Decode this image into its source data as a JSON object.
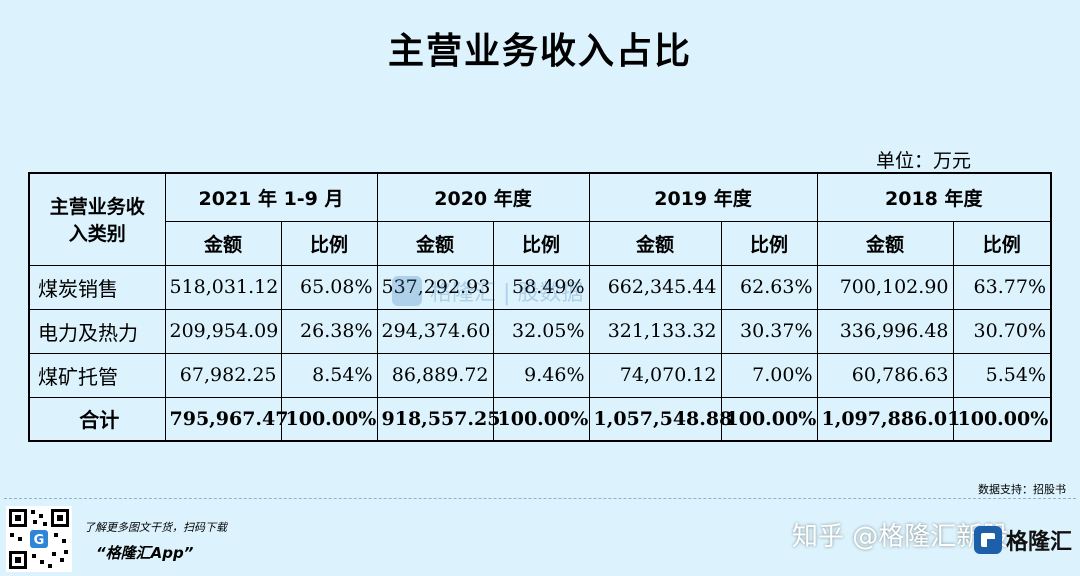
{
  "title": "主营业务收入占比",
  "unit": "单位：万元",
  "table": {
    "corner_header": [
      "主营业务收",
      "入类别"
    ],
    "years": [
      "2021 年 1-9 月",
      "2020 年度",
      "2019 年度",
      "2018 年度"
    ],
    "sub_headers": [
      "金额",
      "比例"
    ],
    "rows": [
      {
        "label": "煤炭销售",
        "cells": [
          "518,031.12",
          "65.08%",
          "537,292.93",
          "58.49%",
          "662,345.44",
          "62.63%",
          "700,102.90",
          "63.77%"
        ]
      },
      {
        "label": "电力及热力",
        "cells": [
          "209,954.09",
          "26.38%",
          "294,374.60",
          "32.05%",
          "321,133.32",
          "30.37%",
          "336,996.48",
          "30.70%"
        ]
      },
      {
        "label": "煤矿托管",
        "cells": [
          "67,982.25",
          "8.54%",
          "86,889.72",
          "9.46%",
          "74,070.12",
          "7.00%",
          "60,786.63",
          "5.54%"
        ]
      },
      {
        "label": "合计",
        "cells": [
          "795,967.47",
          "100.00%",
          "918,557.25",
          "100.00%",
          "1,057,548.88",
          "100.00%",
          "1,097,886.01",
          "100.00%"
        ]
      }
    ]
  },
  "watermark": "格隆汇 | 股数据",
  "source": "数据支持：招股书",
  "footer": {
    "promo": "了解更多图文干货，扫码下载",
    "app_name": "“格隆汇App”",
    "zhihu": "知乎 @格隆汇新股",
    "logo_text": "格隆汇",
    "qr_icon": "qr-code-icon"
  },
  "colors": {
    "background": "#dcf3fd",
    "border": "#000000"
  }
}
